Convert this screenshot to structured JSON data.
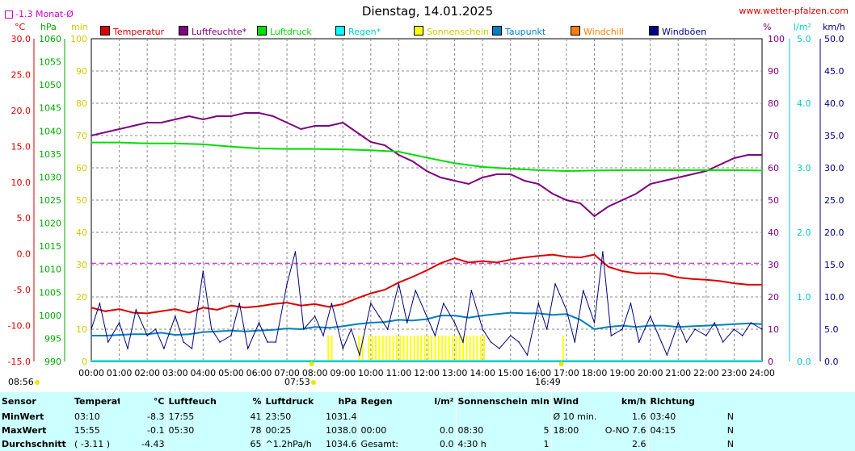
{
  "header": {
    "title": "Dienstag, 14.01.2025",
    "site": "www.wetter-pfalzen.com",
    "month_avg_label": "-1.3 Monat-Ø"
  },
  "units": {
    "celsius": "°C",
    "hpa": "hPa",
    "min": "min",
    "percent": "%",
    "lm2": "l/m²",
    "kmh": "km/h"
  },
  "legend": [
    {
      "label": "Temperatur",
      "color": "#dd0000"
    },
    {
      "label": "Luftfeuchte*",
      "color": "#800080"
    },
    {
      "label": "Luftdruck",
      "color": "#00dd00"
    },
    {
      "label": "Regen*",
      "color": "#00ffff"
    },
    {
      "label": "Sonnenschein",
      "color": "#ffff00"
    },
    {
      "label": "Taupunkt",
      "color": "#0080c0"
    },
    {
      "label": "Windchill",
      "color": "#ff8000"
    },
    {
      "label": "Windböen",
      "color": "#000080"
    }
  ],
  "sun": {
    "sunrise": "07:53",
    "sunset": "16:49",
    "left_time": "08:56"
  },
  "chart_data": {
    "type": "line",
    "title": "Dienstag, 14.01.2025",
    "x_ticks": [
      "00:00",
      "01:00",
      "02:00",
      "03:00",
      "04:00",
      "05:00",
      "06:00",
      "07:00",
      "08:00",
      "09:00",
      "10:00",
      "11:00",
      "12:00",
      "13:00",
      "14:00",
      "15:00",
      "16:00",
      "17:00",
      "18:00",
      "19:00",
      "20:00",
      "21:00",
      "22:00",
      "23:00",
      "24:00"
    ],
    "xlim_hours": [
      0,
      24
    ],
    "grid": true,
    "axes": {
      "temperature": {
        "unit": "°C",
        "ylim": [
          -15,
          30
        ],
        "ticks": [
          "30.0",
          "25.0",
          "20.0",
          "15.0",
          "10.0",
          "5.0",
          "0.0",
          "-5.0",
          "-10.0",
          "-15.0"
        ],
        "color": "#dd0000"
      },
      "pressure": {
        "unit": "hPa",
        "ylim": [
          990,
          1060
        ],
        "ticks": [
          "1060",
          "1055",
          "1050",
          "1045",
          "1040",
          "1035",
          "1030",
          "1025",
          "1020",
          "1015",
          "1010",
          "1005",
          "1000",
          "995",
          "990"
        ],
        "color": "#00aa00"
      },
      "sunshine": {
        "unit": "min",
        "ylim": [
          0,
          100
        ],
        "ticks": [
          "100",
          "90",
          "80",
          "70",
          "60",
          "50",
          "40",
          "30",
          "20",
          "10",
          "0"
        ],
        "color": "#cccc00"
      },
      "humidity": {
        "unit": "%",
        "ylim": [
          0,
          100
        ],
        "ticks": [
          "100",
          "90",
          "80",
          "70",
          "60",
          "50",
          "40",
          "30",
          "20",
          "10",
          "0"
        ],
        "color": "#800080"
      },
      "rain": {
        "unit": "l/m²",
        "ylim": [
          0,
          5
        ],
        "ticks": [
          "5.0",
          "4.0",
          "3.0",
          "2.0",
          "1.0",
          "0.0"
        ],
        "color": "#00cccc"
      },
      "wind": {
        "unit": "km/h",
        "ylim": [
          0,
          50
        ],
        "ticks": [
          "50.0",
          "45.0",
          "40.0",
          "35.0",
          "30.0",
          "25.0",
          "20.0",
          "15.0",
          "10.0",
          "5.0",
          "0.0"
        ],
        "color": "#000080"
      }
    },
    "month_avg_temp": -1.3,
    "series": [
      {
        "name": "Luftfeuchte*",
        "axis": "humidity",
        "color": "#800080",
        "x": [
          0,
          0.5,
          1,
          1.5,
          2,
          2.5,
          3,
          3.5,
          4,
          4.5,
          5,
          5.5,
          6,
          6.5,
          7,
          7.5,
          8,
          8.5,
          9,
          9.5,
          10,
          10.5,
          11,
          11.5,
          12,
          12.5,
          13,
          13.5,
          14,
          14.5,
          15,
          15.5,
          16,
          16.5,
          17,
          17.5,
          18,
          18.5,
          19,
          19.5,
          20,
          20.5,
          21,
          21.5,
          22,
          22.5,
          23,
          23.5,
          24
        ],
        "values": [
          70,
          71,
          72,
          73,
          74,
          74,
          75,
          76,
          75,
          76,
          76,
          77,
          77,
          76,
          74,
          72,
          73,
          73,
          74,
          71,
          68,
          67,
          64,
          62,
          59,
          57,
          56,
          55,
          57,
          58,
          58,
          56,
          55,
          52,
          50,
          49,
          45,
          48,
          50,
          52,
          55,
          56,
          57,
          58,
          59,
          61,
          63,
          64,
          64
        ]
      },
      {
        "name": "Luftdruck",
        "axis": "pressure",
        "color": "#00dd00",
        "x": [
          0,
          1,
          2,
          3,
          4,
          5,
          6,
          7,
          8,
          9,
          10,
          11,
          12,
          13,
          14,
          15,
          16,
          17,
          18,
          19,
          20,
          21,
          22,
          23,
          24
        ],
        "values": [
          1037.5,
          1037.5,
          1037.3,
          1037.3,
          1037.1,
          1036.6,
          1036.2,
          1036.1,
          1036.1,
          1036.0,
          1035.8,
          1035.5,
          1034.2,
          1033.0,
          1032.2,
          1031.8,
          1031.5,
          1031.3,
          1031.4,
          1031.5,
          1031.5,
          1031.5,
          1031.5,
          1031.5,
          1031.4
        ]
      },
      {
        "name": "Temperatur",
        "axis": "temperature",
        "color": "#dd0000",
        "x": [
          0,
          0.5,
          1,
          1.5,
          2,
          2.5,
          3,
          3.5,
          4,
          4.5,
          5,
          5.5,
          6,
          6.5,
          7,
          7.5,
          8,
          8.5,
          9,
          9.5,
          10,
          10.5,
          11,
          11.5,
          12,
          12.5,
          13,
          13.5,
          14,
          14.5,
          15,
          15.5,
          16,
          16.5,
          17,
          17.5,
          18,
          18.5,
          19,
          19.5,
          20,
          20.5,
          21,
          21.5,
          22,
          22.5,
          23,
          23.5,
          24
        ],
        "values": [
          -7.5,
          -8.0,
          -7.7,
          -8.2,
          -8.3,
          -8.0,
          -7.7,
          -8.2,
          -7.5,
          -7.8,
          -7.2,
          -7.5,
          -7.3,
          -7.0,
          -6.8,
          -7.2,
          -7.0,
          -7.4,
          -7.0,
          -6.2,
          -5.5,
          -5.0,
          -4.0,
          -3.2,
          -2.3,
          -1.3,
          -0.6,
          -1.2,
          -1.0,
          -1.2,
          -0.8,
          -0.5,
          -0.3,
          -0.1,
          -0.4,
          -0.5,
          -0.1,
          -1.8,
          -2.4,
          -2.7,
          -2.7,
          -2.8,
          -3.3,
          -3.5,
          -3.6,
          -3.8,
          -4.1,
          -4.3,
          -4.3
        ]
      },
      {
        "name": "Taupunkt",
        "axis": "temperature",
        "color": "#0080c0",
        "x": [
          0,
          0.5,
          1,
          1.5,
          2,
          2.5,
          3,
          3.5,
          4,
          4.5,
          5,
          5.5,
          6,
          6.5,
          7,
          7.5,
          8,
          8.5,
          9,
          9.5,
          10,
          10.5,
          11,
          11.5,
          12,
          12.5,
          13,
          13.5,
          14,
          14.5,
          15,
          15.5,
          16,
          16.5,
          17,
          17.5,
          18,
          18.5,
          19,
          19.5,
          20,
          20.5,
          21,
          21.5,
          22,
          22.5,
          23,
          23.5,
          24
        ],
        "values": [
          -11.4,
          -11.4,
          -11.3,
          -11.2,
          -11.2,
          -11.0,
          -11.3,
          -11.2,
          -10.9,
          -10.8,
          -10.7,
          -10.8,
          -10.7,
          -10.6,
          -10.4,
          -10.5,
          -10.2,
          -10.3,
          -10.1,
          -9.8,
          -9.6,
          -9.5,
          -9.2,
          -9.3,
          -9.1,
          -8.6,
          -8.6,
          -8.9,
          -8.6,
          -8.4,
          -8.2,
          -8.3,
          -8.3,
          -8.5,
          -8.4,
          -9.2,
          -10.5,
          -10.2,
          -10.0,
          -10.2,
          -10.0,
          -10.0,
          -10.2,
          -10.1,
          -10.0,
          -9.9,
          -9.8,
          -9.7,
          -9.8
        ]
      },
      {
        "name": "Windböen",
        "axis": "wind",
        "color": "#000080",
        "x": [
          0,
          0.3,
          0.6,
          1,
          1.3,
          1.6,
          2,
          2.3,
          2.6,
          3,
          3.3,
          3.6,
          4,
          4.3,
          4.6,
          5,
          5.3,
          5.6,
          6,
          6.3,
          6.6,
          7,
          7.3,
          7.6,
          8,
          8.3,
          8.6,
          9,
          9.3,
          9.6,
          10,
          10.3,
          10.6,
          11,
          11.3,
          11.6,
          12,
          12.3,
          12.6,
          13,
          13.3,
          13.6,
          14,
          14.3,
          14.6,
          15,
          15.3,
          15.6,
          16,
          16.3,
          16.6,
          17,
          17.3,
          17.6,
          18,
          18.3,
          18.6,
          19,
          19.3,
          19.6,
          20,
          20.3,
          20.6,
          21,
          21.3,
          21.6,
          22,
          22.3,
          22.6,
          23,
          23.3,
          23.6,
          24
        ],
        "values": [
          5,
          9,
          3,
          6,
          2,
          8,
          4,
          5,
          2,
          7,
          3,
          2,
          14,
          5,
          3,
          4,
          9,
          2,
          6,
          3,
          3,
          12,
          17,
          5,
          7,
          4,
          9,
          2,
          5,
          1,
          9,
          7,
          5,
          12,
          6,
          11,
          7,
          4,
          9,
          6,
          3,
          11,
          5,
          3,
          2,
          4,
          3,
          1,
          9,
          5,
          12,
          8,
          3,
          11,
          6,
          17,
          4,
          5,
          9,
          3,
          7,
          4,
          1,
          6,
          3,
          5,
          4,
          6,
          3,
          5,
          4,
          6,
          5
        ]
      }
    ],
    "sunshine_bars": {
      "axis": "sunshine",
      "color": "#ffff00",
      "segments": [
        [
          8.45,
          8.6
        ],
        [
          9.55,
          9.7
        ],
        [
          9.9,
          14.05
        ],
        [
          16.85,
          16.9
        ]
      ],
      "value": 5
    }
  },
  "stats": {
    "headers": {
      "sensor": "Sensor",
      "temperature": "Temperatur",
      "temperature_unit": "°C",
      "humidity": "Luftfeuchte",
      "humidity_unit": "%",
      "pressure": "Luftdruck",
      "pressure_unit": "hPa",
      "rain": "Regen",
      "rain_unit": "l/m²",
      "sun": "Sonnenschein min",
      "wind": "Wind",
      "wind_unit": "km/h",
      "direction": "Richtung"
    },
    "rows": [
      {
        "label": "MinWert",
        "temp_time": "03:10",
        "temp_val": "-8.3",
        "hum_time": "17:55",
        "hum_val": "41",
        "pres_time": "23:50",
        "pres_val": "1031.4",
        "rain_time": "",
        "rain_val": "",
        "sun_time": "",
        "sun_val": "",
        "wind_time": "Ø 10 min.",
        "wind_val": "1.6",
        "dir_time": "03:40",
        "dir_val": "N"
      },
      {
        "label": "MaxWert",
        "temp_time": "15:55",
        "temp_val": "-0.1",
        "hum_time": "05:30",
        "hum_val": "78",
        "pres_time": "00:25",
        "pres_val": "1038.0",
        "rain_time": "00:00",
        "rain_val": "0.0",
        "sun_time": "08:30",
        "sun_val": "5",
        "wind_time": "18:00",
        "wind_val": "O-NO 7.6",
        "dir_time": "04:15",
        "dir_val": "N"
      },
      {
        "label": "Durchschnitt",
        "temp_time": "( -3.11 )",
        "temp_val": "-4.43",
        "hum_time": "",
        "hum_val": "65",
        "pres_time": "^1.2hPa/h",
        "pres_val": "1034.6",
        "rain_time": "Gesamt:",
        "rain_val": "0.0",
        "sun_time": "4:30 h",
        "sun_val": "1",
        "wind_time": "",
        "wind_val": "2.6",
        "dir_time": "",
        "dir_val": "N"
      }
    ]
  }
}
